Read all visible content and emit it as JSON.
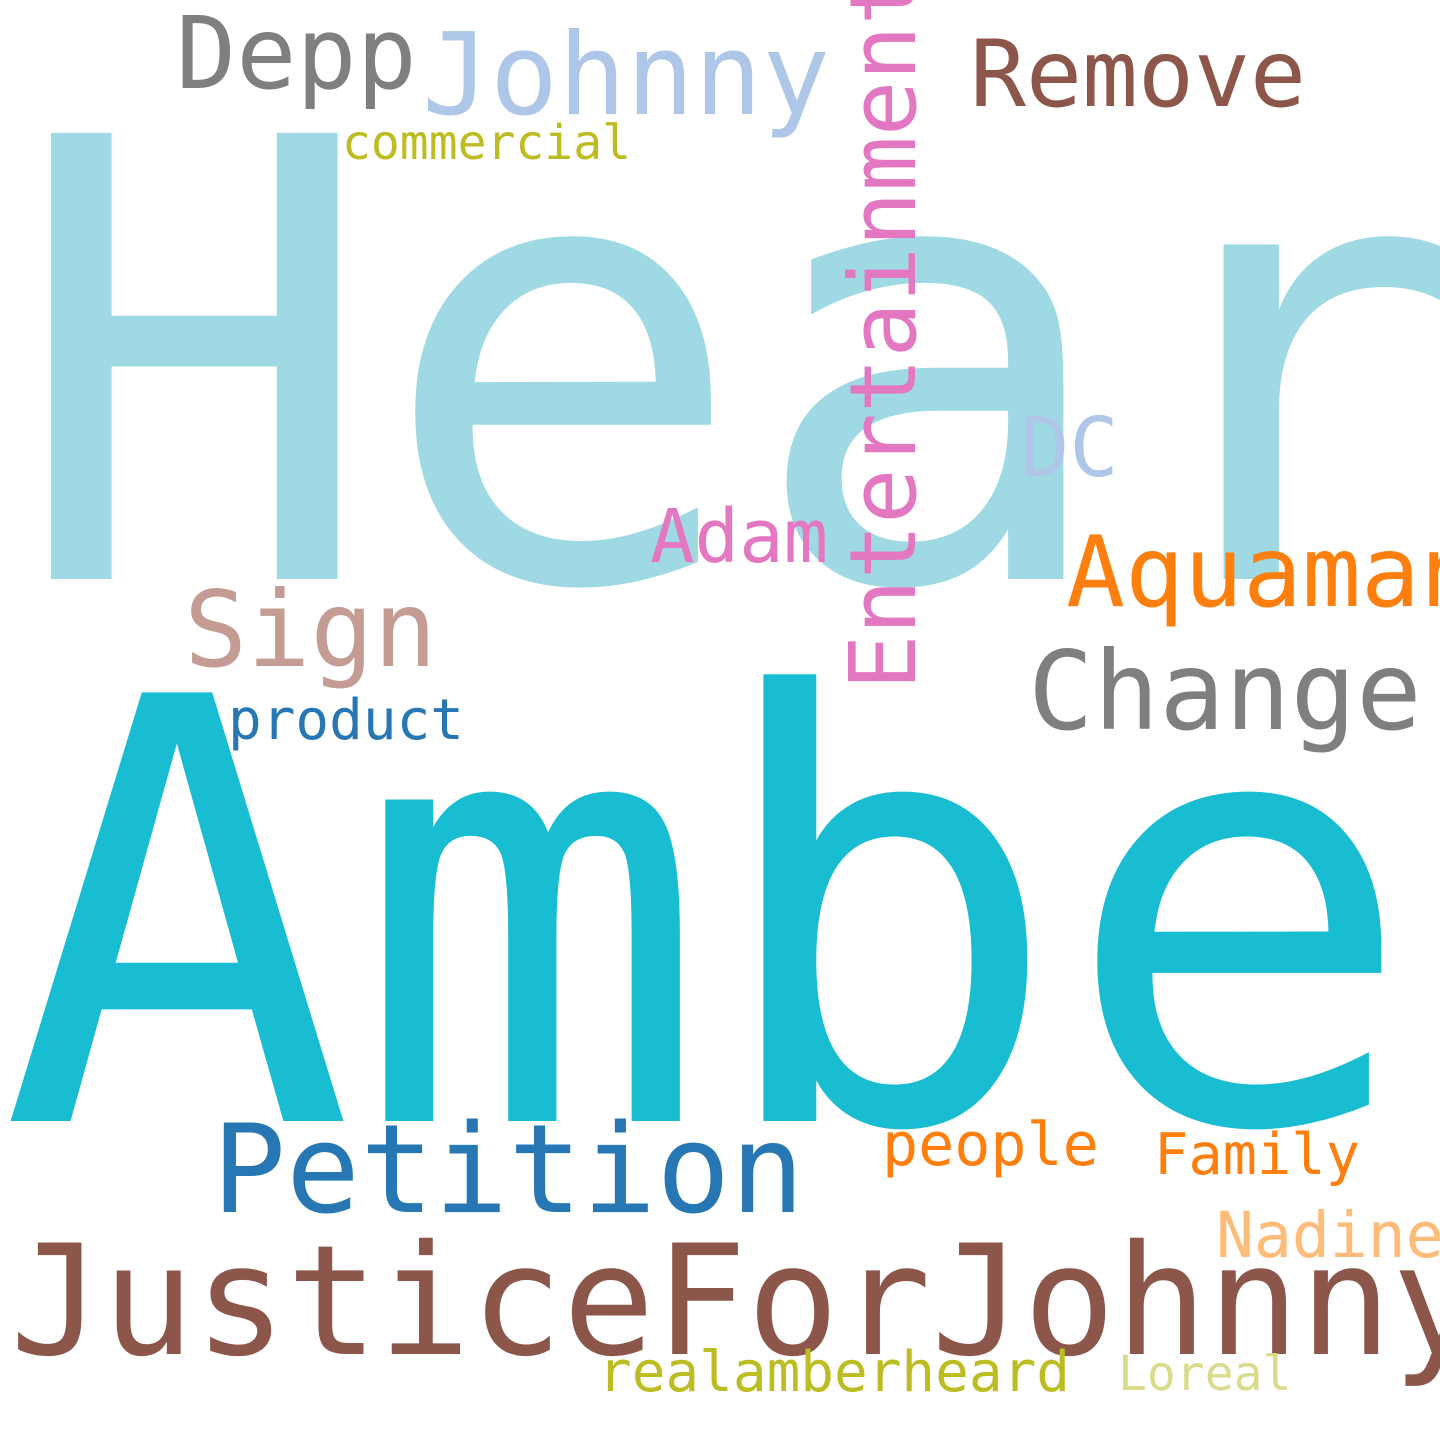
{
  "cloud": {
    "background": "#ffffff",
    "words": {
      "heard": {
        "text": "Heard",
        "color": "#9fd9e4"
      },
      "amber": {
        "text": "Amber",
        "color": "#19bdd1"
      },
      "justice": {
        "text": "JusticeForJohnnyDepp",
        "color": "#8c564b"
      },
      "petition": {
        "text": "Petition",
        "color": "#2677b4"
      },
      "johnny": {
        "text": "Johnny",
        "color": "#aec7e8"
      },
      "depp": {
        "text": "Depp",
        "color": "#7f7f7f"
      },
      "remove": {
        "text": "Remove",
        "color": "#8c564b"
      },
      "entertainment": {
        "text": "Entertainment",
        "color": "#e377c2"
      },
      "change": {
        "text": "Change",
        "color": "#7f7f7f"
      },
      "aquaman": {
        "text": "Aquaman",
        "color": "#ff7f0e"
      },
      "sign": {
        "text": "Sign",
        "color": "#c49c94"
      },
      "dc": {
        "text": "DC",
        "color": "#aec7e8"
      },
      "adam": {
        "text": "Adam",
        "color": "#e377c2"
      },
      "product": {
        "text": "product",
        "color": "#2677b4"
      },
      "commercial": {
        "text": "commercial",
        "color": "#bcbd22"
      },
      "people": {
        "text": "people",
        "color": "#ff7f0e"
      },
      "family": {
        "text": "Family",
        "color": "#ff7f0e"
      },
      "nadine": {
        "text": "Nadine",
        "color": "#ffbb78"
      },
      "realamberheard": {
        "text": "realamberheard",
        "color": "#bcbd22"
      },
      "loreal": {
        "text": "Loreal",
        "color": "#dbdb8d"
      }
    }
  }
}
